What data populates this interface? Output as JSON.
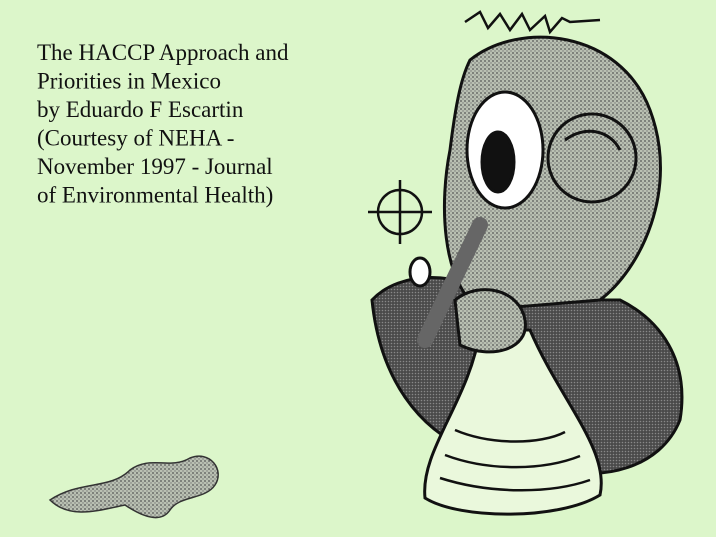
{
  "document": {
    "lines": [
      "The HACCP Approach and",
      "Priorities in Mexico",
      "by Eduardo F Escartin",
      "(Courtesy of NEHA -",
      "November 1997 - Journal",
      "of Environmental Health)"
    ]
  }
}
